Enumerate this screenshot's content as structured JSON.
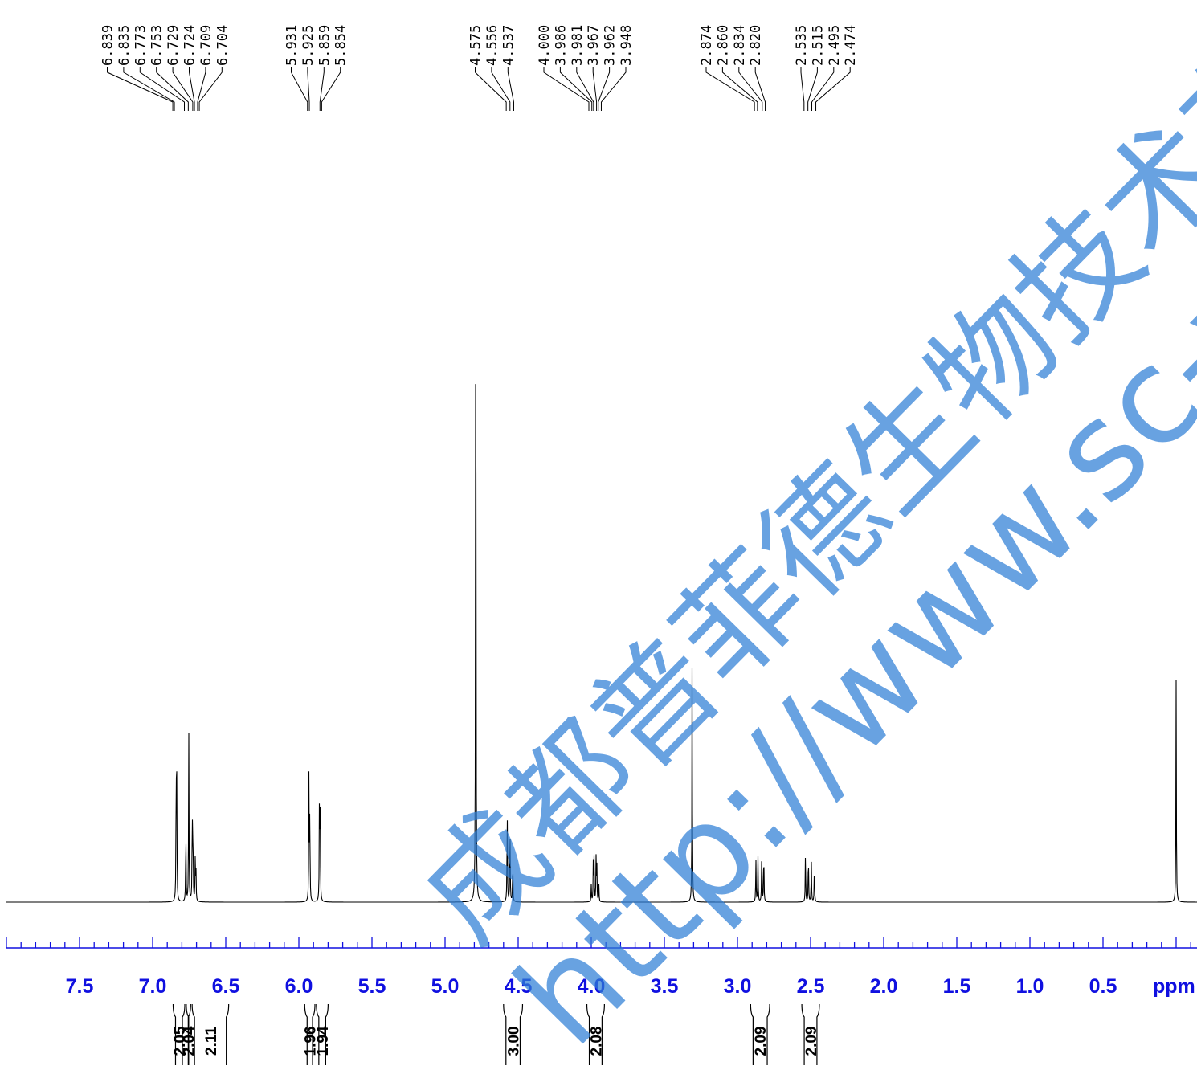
{
  "chart_data": {
    "type": "line",
    "xlabel": "ppm",
    "xlim": [
      8.0,
      -0.15
    ],
    "x_reversed": true,
    "ticks": [
      {
        "value": 7.5,
        "label": "7.5"
      },
      {
        "value": 7.0,
        "label": "7.0"
      },
      {
        "value": 6.5,
        "label": "6.5"
      },
      {
        "value": 6.0,
        "label": "6.0"
      },
      {
        "value": 5.5,
        "label": "5.5"
      },
      {
        "value": 5.0,
        "label": "5.0"
      },
      {
        "value": 4.5,
        "label": "4.5"
      },
      {
        "value": 4.0,
        "label": "4.0"
      },
      {
        "value": 3.5,
        "label": "3.5"
      },
      {
        "value": 3.0,
        "label": "3.0"
      },
      {
        "value": 2.5,
        "label": "2.5"
      },
      {
        "value": 2.0,
        "label": "2.0"
      },
      {
        "value": 1.5,
        "label": "1.5"
      },
      {
        "value": 1.0,
        "label": "1.0"
      },
      {
        "value": 0.5,
        "label": "0.5"
      }
    ],
    "minor_tick_step": 0.1,
    "peaks": [
      {
        "ppm": 6.839,
        "intensity": 0.174
      },
      {
        "ppm": 6.835,
        "intensity": 0.14
      },
      {
        "ppm": 6.773,
        "intensity": 0.098
      },
      {
        "ppm": 6.753,
        "intensity": 0.22
      },
      {
        "ppm": 6.729,
        "intensity": 0.12
      },
      {
        "ppm": 6.724,
        "intensity": 0.09
      },
      {
        "ppm": 6.709,
        "intensity": 0.052
      },
      {
        "ppm": 6.704,
        "intensity": 0.045
      },
      {
        "ppm": 5.931,
        "intensity": 0.165
      },
      {
        "ppm": 5.925,
        "intensity": 0.12
      },
      {
        "ppm": 5.859,
        "intensity": 0.15
      },
      {
        "ppm": 5.854,
        "intensity": 0.11
      },
      {
        "ppm": 4.79,
        "intensity": 1.0
      },
      {
        "ppm": 4.575,
        "intensity": 0.128
      },
      {
        "ppm": 4.556,
        "intensity": 0.11
      },
      {
        "ppm": 4.537,
        "intensity": 0.055
      },
      {
        "ppm": 4.0,
        "intensity": 0.022
      },
      {
        "ppm": 3.986,
        "intensity": 0.05
      },
      {
        "ppm": 3.981,
        "intensity": 0.055
      },
      {
        "ppm": 3.967,
        "intensity": 0.055
      },
      {
        "ppm": 3.962,
        "intensity": 0.048
      },
      {
        "ppm": 3.948,
        "intensity": 0.022
      },
      {
        "ppm": 3.31,
        "intensity": 0.32
      },
      {
        "ppm": 2.874,
        "intensity": 0.055
      },
      {
        "ppm": 2.86,
        "intensity": 0.058
      },
      {
        "ppm": 2.834,
        "intensity": 0.075
      },
      {
        "ppm": 2.82,
        "intensity": 0.07
      },
      {
        "ppm": 2.535,
        "intensity": 0.066
      },
      {
        "ppm": 2.515,
        "intensity": 0.066
      },
      {
        "ppm": 2.495,
        "intensity": 0.055
      },
      {
        "ppm": 2.474,
        "intensity": 0.052
      },
      {
        "ppm": 0.0,
        "intensity": 0.285
      }
    ],
    "peak_label_groups": [
      {
        "labels": [
          "6.839",
          "6.835",
          "6.773",
          "6.753",
          "6.729",
          "6.724",
          "6.709",
          "6.704"
        ],
        "ppms": [
          6.839,
          6.835,
          6.773,
          6.753,
          6.729,
          6.724,
          6.709,
          6.704
        ]
      },
      {
        "labels": [
          "5.931",
          "5.925",
          "5.859",
          "5.854"
        ],
        "ppms": [
          5.931,
          5.925,
          5.859,
          5.854
        ]
      },
      {
        "labels": [
          "4.575",
          "4.556",
          "4.537"
        ],
        "ppms": [
          4.575,
          4.556,
          4.537
        ]
      },
      {
        "labels": [
          "4.000",
          "3.986",
          "3.981",
          "3.967",
          "3.962",
          "3.948"
        ],
        "ppms": [
          4.0,
          3.986,
          3.981,
          3.967,
          3.962,
          3.948
        ]
      },
      {
        "labels": [
          "2.874",
          "2.860",
          "2.834",
          "2.820"
        ],
        "ppms": [
          2.874,
          2.86,
          2.834,
          2.82
        ]
      },
      {
        "labels": [
          "2.535",
          "2.515",
          "2.495",
          "2.474"
        ],
        "ppms": [
          2.535,
          2.515,
          2.495,
          2.474
        ]
      }
    ],
    "integrals": [
      {
        "label": "2.05",
        "from": 6.86,
        "to": 6.78
      },
      {
        "label": "2.04",
        "from": 6.77,
        "to": 6.74
      },
      {
        "label": "2.11",
        "from": 6.73,
        "to": 6.48
      },
      {
        "label": "1.96",
        "from": 5.96,
        "to": 5.89
      },
      {
        "label": "1.94",
        "from": 5.88,
        "to": 5.8
      },
      {
        "label": "3.00",
        "from": 4.6,
        "to": 4.47
      },
      {
        "label": "2.08",
        "from": 4.03,
        "to": 3.91
      },
      {
        "label": "2.09",
        "from": 2.91,
        "to": 2.78
      },
      {
        "label": "2.09",
        "from": 2.56,
        "to": 2.44
      }
    ]
  },
  "watermark": {
    "line1": "成都普菲德生物技术有限",
    "line2": "http://www.sc-victo",
    "color": "#2f7fd6"
  }
}
